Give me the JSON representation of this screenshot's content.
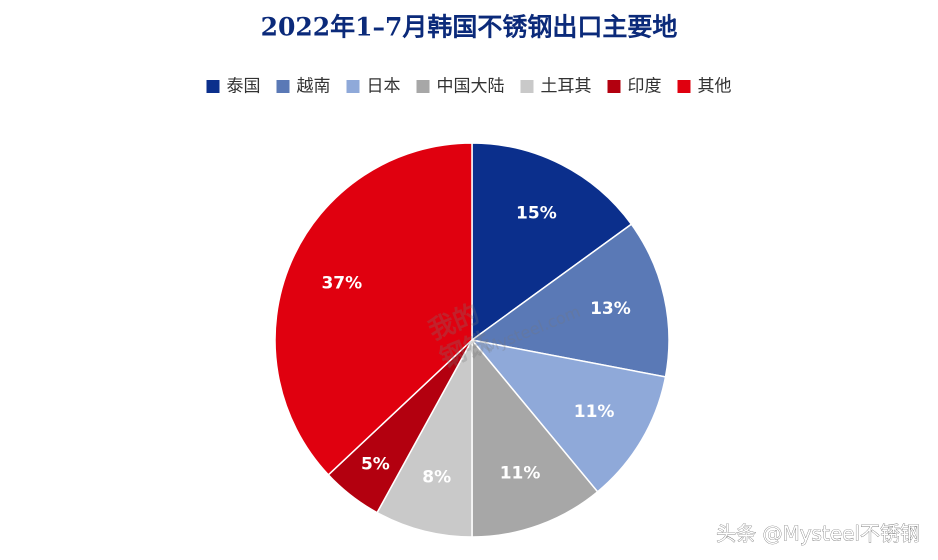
{
  "chart_data": {
    "type": "pie",
    "title": "2022年1–7月韩国不锈钢出口主要地",
    "categories": [
      "泰国",
      "越南",
      "日本",
      "中国大陆",
      "土耳其",
      "印度",
      "其他"
    ],
    "values": [
      15,
      13,
      11,
      11,
      8,
      5,
      37
    ],
    "value_labels": [
      "15%",
      "13%",
      "11%",
      "11%",
      "8%",
      "5%",
      "37%"
    ],
    "colors": [
      "#0b2f8c",
      "#5a79b6",
      "#8fa9d9",
      "#a7a7a7",
      "#c9c9c9",
      "#b3000f",
      "#e0000f"
    ],
    "legend": "top"
  },
  "watermark": [
    "我的",
    "钢铁",
    "Mysteel.com"
  ],
  "footer": "头条 @Mysteel不锈钢"
}
